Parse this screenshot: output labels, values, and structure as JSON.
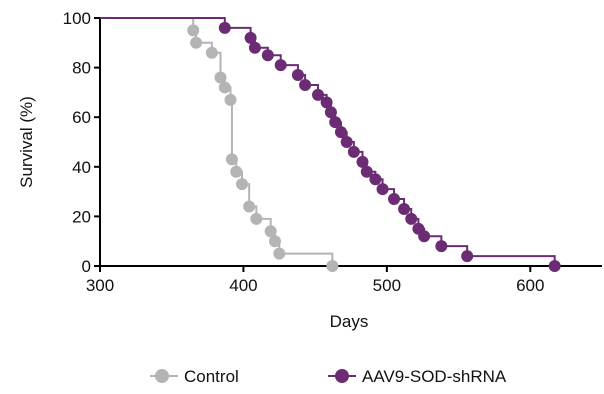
{
  "chart_data": {
    "type": "line",
    "subtype": "kaplan-meier step",
    "xlabel": "Days",
    "ylabel": "Survival (%)",
    "xlim": [
      300,
      650
    ],
    "ylim": [
      0,
      100
    ],
    "xticks": [
      300,
      400,
      500,
      600
    ],
    "yticks": [
      0,
      20,
      40,
      60,
      80,
      100
    ],
    "grid": false,
    "legend_position": "bottom",
    "series": [
      {
        "name": "Control",
        "color": "#b4b4b4",
        "start_x": 300,
        "events": [
          {
            "x": 365,
            "y": 95
          },
          {
            "x": 367,
            "y": 90
          },
          {
            "x": 378,
            "y": 86
          },
          {
            "x": 384,
            "y": 76
          },
          {
            "x": 387,
            "y": 72
          },
          {
            "x": 391,
            "y": 67
          },
          {
            "x": 392,
            "y": 43
          },
          {
            "x": 395,
            "y": 38
          },
          {
            "x": 399,
            "y": 33
          },
          {
            "x": 404,
            "y": 24
          },
          {
            "x": 409,
            "y": 19
          },
          {
            "x": 419,
            "y": 14
          },
          {
            "x": 422,
            "y": 10
          },
          {
            "x": 425,
            "y": 5
          },
          {
            "x": 462,
            "y": 0
          }
        ]
      },
      {
        "name": "AAV9-SOD-shRNA",
        "color": "#6b2c74",
        "start_x": 300,
        "events": [
          {
            "x": 387,
            "y": 96
          },
          {
            "x": 405,
            "y": 92
          },
          {
            "x": 408,
            "y": 88
          },
          {
            "x": 417,
            "y": 85
          },
          {
            "x": 426,
            "y": 81
          },
          {
            "x": 438,
            "y": 77
          },
          {
            "x": 443,
            "y": 73
          },
          {
            "x": 452,
            "y": 69
          },
          {
            "x": 458,
            "y": 66
          },
          {
            "x": 461,
            "y": 62
          },
          {
            "x": 464,
            "y": 58
          },
          {
            "x": 468,
            "y": 54
          },
          {
            "x": 472,
            "y": 50
          },
          {
            "x": 477,
            "y": 46
          },
          {
            "x": 483,
            "y": 42
          },
          {
            "x": 486,
            "y": 38
          },
          {
            "x": 492,
            "y": 35
          },
          {
            "x": 497,
            "y": 31
          },
          {
            "x": 505,
            "y": 27
          },
          {
            "x": 512,
            "y": 23
          },
          {
            "x": 517,
            "y": 19
          },
          {
            "x": 522,
            "y": 15
          },
          {
            "x": 526,
            "y": 12
          },
          {
            "x": 538,
            "y": 8
          },
          {
            "x": 556,
            "y": 4
          },
          {
            "x": 617,
            "y": 0
          }
        ]
      }
    ]
  }
}
